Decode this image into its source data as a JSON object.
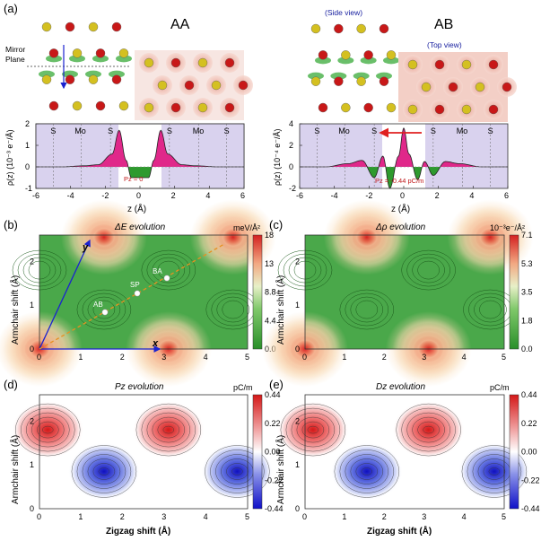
{
  "panel_a": {
    "label": "(a)",
    "aa_title": "AA",
    "ab_title": "AB",
    "mirror_plane": [
      "Mirror",
      "Plane"
    ],
    "side_view": "(Side view)",
    "top_view": "(Top view)",
    "aa_plot": {
      "ylabel": "ρ(z) (10⁻³ e⁻/Å)",
      "xlabel": "z (Å)",
      "xticks": [
        "-6",
        "-4",
        "-2",
        "0",
        "2",
        "4",
        "6"
      ],
      "yticks": [
        "2",
        "1",
        "0",
        "-1"
      ],
      "layers": [
        "S",
        "Mo",
        "S",
        "S",
        "Mo",
        "S"
      ],
      "pz_note": "Pz = 0"
    },
    "ab_plot": {
      "ylabel": "ρ(z) (10⁻⁴ e⁻/Å)",
      "xlabel": "z (Å)",
      "xticks": [
        "-6",
        "-4",
        "-2",
        "0",
        "2",
        "4",
        "6"
      ],
      "yticks": [
        "4",
        "2",
        "0",
        "-2"
      ],
      "layers": [
        "S",
        "Mo",
        "S",
        "S",
        "Mo",
        "S"
      ],
      "pz_note": "Pz = -0.44 pC/m"
    }
  },
  "maps": [
    {
      "label": "(b)",
      "title": "ΔE evolution",
      "unit": "meV/Å²",
      "ticks": [
        "18",
        "13",
        "8.8",
        "4.4",
        "0.0"
      ]
    },
    {
      "label": "(c)",
      "title": "Δρ evolution",
      "unit": "10⁻³e⁻/Å²",
      "ticks": [
        "7.1",
        "5.3",
        "3.5",
        "1.8",
        "0.0"
      ]
    },
    {
      "label": "(d)",
      "title": "Pz evolution",
      "unit": "pC/m",
      "ticks": [
        "0.44",
        "0.22",
        "0.00",
        "-0.22",
        "-0.44"
      ]
    },
    {
      "label": "(e)",
      "title": "Dz evolution",
      "unit": "pC/m",
      "ticks": [
        "0.44",
        "0.22",
        "0.00",
        "-0.22",
        "-0.44"
      ]
    }
  ],
  "map_axes": {
    "xlabel": "Zigzag shift (Å)",
    "ylabel": "Armchair shift (Å)",
    "xticks": [
      "0",
      "1",
      "2",
      "3",
      "4",
      "5"
    ],
    "yticks": [
      "0",
      "1",
      "2"
    ]
  },
  "map_b_annotations": {
    "ab": "AB",
    "sp": "SP",
    "ba": "BA",
    "x": "x",
    "y": "y"
  },
  "colors": {
    "green": "#2e9a2e",
    "red": "#d83030",
    "blue": "#1a22d0",
    "magenta": "#e0288a",
    "lavender": "#d9d2ee"
  },
  "chart_data": [
    {
      "type": "line",
      "title": "AA",
      "xlabel": "z (Å)",
      "ylabel": "ρ(z) (10⁻³ e⁻/Å)",
      "xlim": [
        -6,
        6
      ],
      "ylim": [
        -1,
        2
      ],
      "series": [
        {
          "name": "ρ(z)",
          "x": [
            -6,
            -4.5,
            -3.2,
            -2.4,
            -1.6,
            -1.2,
            -0.8,
            -0.5,
            0,
            0.5,
            0.8,
            1.2,
            1.6,
            2.4,
            3.2,
            4.5,
            6
          ],
          "values": [
            0,
            0,
            0.05,
            0.1,
            0.6,
            1.7,
            0.3,
            -0.5,
            -0.5,
            -0.5,
            0.3,
            1.7,
            0.6,
            0.1,
            0.05,
            0,
            0
          ]
        }
      ]
    },
    {
      "type": "line",
      "title": "AB",
      "xlabel": "z (Å)",
      "ylabel": "ρ(z) (10⁻⁴ e⁻/Å)",
      "xlim": [
        -6,
        6
      ],
      "ylim": [
        -2,
        4
      ],
      "series": [
        {
          "name": "ρ(z)",
          "x": [
            -6,
            -4.5,
            -3.2,
            -2.4,
            -1.7,
            -1.2,
            -0.8,
            -0.3,
            0,
            0.3,
            0.8,
            1.2,
            1.7,
            2.4,
            3.2,
            4.5,
            6
          ],
          "values": [
            0,
            0,
            0.3,
            0.6,
            -1.0,
            1.0,
            -2.0,
            1.0,
            3.6,
            1.2,
            -1.2,
            0.5,
            -0.8,
            0.5,
            0.3,
            0,
            0
          ]
        }
      ]
    },
    {
      "type": "heatmap",
      "title": "ΔE evolution",
      "xlabel": "Zigzag shift (Å)",
      "ylabel": "Armchair shift (Å)",
      "xlim": [
        0,
        5
      ],
      "ylim": [
        0,
        2.6
      ],
      "zlim": [
        0,
        18
      ],
      "unit": "meV/Å²"
    },
    {
      "type": "heatmap",
      "title": "Δρ evolution",
      "xlabel": "Zigzag shift (Å)",
      "ylabel": "Armchair shift (Å)",
      "xlim": [
        0,
        5
      ],
      "ylim": [
        0,
        2.6
      ],
      "zlim": [
        0,
        7.1
      ],
      "unit": "10⁻³e⁻/Å²"
    },
    {
      "type": "heatmap",
      "title": "Pz evolution",
      "xlabel": "Zigzag shift (Å)",
      "ylabel": "Armchair shift (Å)",
      "xlim": [
        0,
        5
      ],
      "ylim": [
        0,
        2.6
      ],
      "zlim": [
        -0.44,
        0.44
      ],
      "unit": "pC/m"
    },
    {
      "type": "heatmap",
      "title": "Dz evolution",
      "xlabel": "Zigzag shift (Å)",
      "ylabel": "Armchair shift (Å)",
      "xlim": [
        0,
        5
      ],
      "ylim": [
        0,
        2.6
      ],
      "zlim": [
        -0.44,
        0.44
      ],
      "unit": "pC/m"
    }
  ]
}
